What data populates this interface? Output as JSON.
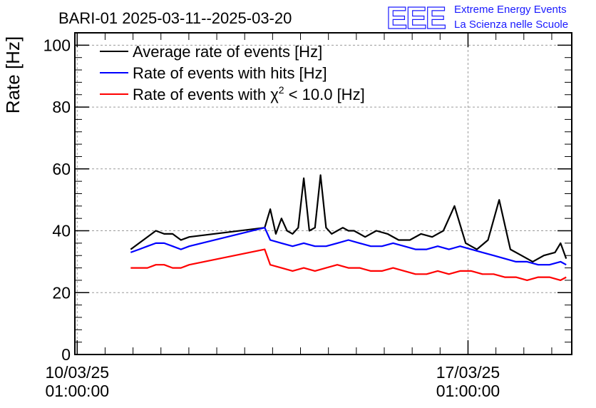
{
  "chart_data": {
    "type": "line",
    "title": "BARI-01 2025-03-11--2025-03-20",
    "ylabel": "Rate [Hz]",
    "xlabel": "",
    "ylim": [
      0,
      104
    ],
    "yticks": [
      0,
      20,
      40,
      60,
      80,
      100
    ],
    "x_range_days": [
      10.0,
      18.9
    ],
    "xticks": [
      {
        "value": 10.0417,
        "date": "10/03/25",
        "time": "01:00:00"
      },
      {
        "value": 17.0417,
        "date": "17/03/25",
        "time": "01:00:00"
      }
    ],
    "grid": true,
    "legend_position": "top-left",
    "series": [
      {
        "name": "Average rate of events [Hz]",
        "color": "#000000",
        "x": [
          11.0,
          11.15,
          11.3,
          11.45,
          11.6,
          11.75,
          11.9,
          12.05,
          13.4,
          13.5,
          13.6,
          13.7,
          13.8,
          13.9,
          14.0,
          14.1,
          14.2,
          14.3,
          14.4,
          14.5,
          14.6,
          14.7,
          14.8,
          14.9,
          15.0,
          15.2,
          15.4,
          15.6,
          15.8,
          16.0,
          16.2,
          16.4,
          16.6,
          16.8,
          17.0,
          17.2,
          17.4,
          17.6,
          17.8,
          18.0,
          18.2,
          18.4,
          18.6,
          18.7,
          18.8
        ],
        "y": [
          34,
          36,
          38,
          40,
          39,
          39,
          37,
          38,
          41,
          47,
          39,
          44,
          40,
          39,
          41,
          57,
          40,
          41,
          58,
          41,
          39,
          40,
          41,
          40,
          40,
          38,
          40,
          39,
          37,
          37,
          39,
          38,
          40,
          48,
          36,
          34,
          37,
          50,
          34,
          32,
          30,
          32,
          33,
          36,
          31
        ]
      },
      {
        "name": "Rate of events with hits [Hz]",
        "color": "#0000ff",
        "x": [
          11.0,
          11.15,
          11.3,
          11.45,
          11.6,
          11.75,
          11.9,
          12.05,
          13.4,
          13.5,
          13.7,
          13.9,
          14.1,
          14.3,
          14.5,
          14.7,
          14.9,
          15.1,
          15.3,
          15.5,
          15.7,
          15.9,
          16.1,
          16.3,
          16.5,
          16.7,
          16.9,
          17.1,
          17.3,
          17.5,
          17.7,
          17.9,
          18.1,
          18.3,
          18.5,
          18.7,
          18.8
        ],
        "y": [
          33,
          34,
          35,
          36,
          36,
          35,
          34,
          35,
          41,
          37,
          36,
          35,
          36,
          35,
          35,
          36,
          37,
          36,
          35,
          35,
          36,
          35,
          34,
          34,
          35,
          34,
          35,
          34,
          33,
          32,
          31,
          30,
          30,
          29,
          29,
          30,
          29
        ]
      },
      {
        "name": "Rate of events with χ2 < 10.0 [Hz]",
        "color": "#ff0000",
        "x": [
          11.0,
          11.15,
          11.3,
          11.45,
          11.6,
          11.75,
          11.9,
          12.05,
          13.4,
          13.5,
          13.7,
          13.9,
          14.1,
          14.3,
          14.5,
          14.7,
          14.9,
          15.1,
          15.3,
          15.5,
          15.7,
          15.9,
          16.1,
          16.3,
          16.5,
          16.7,
          16.9,
          17.1,
          17.3,
          17.5,
          17.7,
          17.9,
          18.1,
          18.3,
          18.5,
          18.7,
          18.8
        ],
        "y": [
          28,
          28,
          28,
          29,
          29,
          28,
          28,
          29,
          34,
          29,
          28,
          27,
          28,
          27,
          28,
          29,
          28,
          28,
          27,
          27,
          28,
          27,
          26,
          26,
          27,
          26,
          27,
          27,
          26,
          26,
          25,
          25,
          24,
          25,
          25,
          24,
          25
        ]
      }
    ],
    "legend_items": [
      {
        "name": "Average rate of events [Hz]",
        "color": "#000000"
      },
      {
        "name": "Rate of events with hits [Hz]",
        "color": "#0000ff"
      },
      {
        "name_prefix": "Rate of events with ",
        "symbol": "χ",
        "superscript": "2",
        "name_suffix": " < 10.0 [Hz]",
        "color": "#ff0000"
      }
    ]
  },
  "logo": {
    "mark": "EEE",
    "line1": "Extreme Energy Events",
    "line2": "La Scienza nelle Scuole",
    "color": "#1a1aff"
  }
}
